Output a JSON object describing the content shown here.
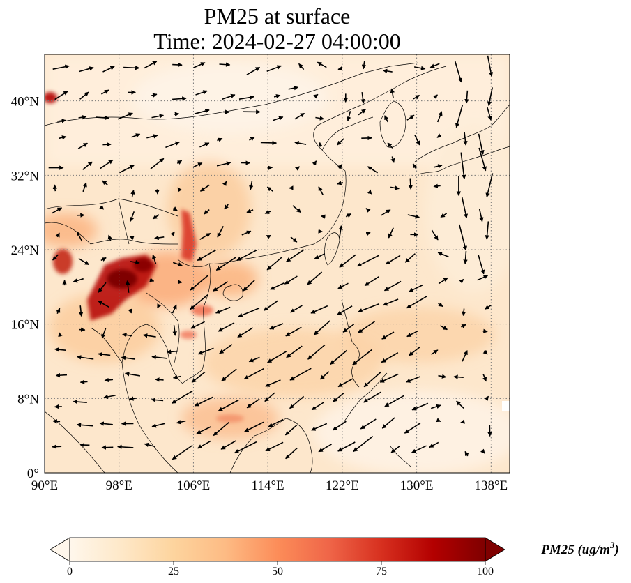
{
  "title": "PM25 at surface",
  "subtitle": "Time: 2024-02-27 04:00:00",
  "map": {
    "projection": "PlateCarree",
    "lon_range": [
      90,
      140
    ],
    "lat_range": [
      0,
      45
    ],
    "x_tick_labels": [
      "90°E",
      "98°E",
      "106°E",
      "114°E",
      "122°E",
      "130°E",
      "138°E"
    ],
    "y_tick_labels": [
      "0°",
      "8°N",
      "16°N",
      "24°N",
      "32°N",
      "40°N"
    ],
    "gridlines": "dotted gray",
    "overlay": "wind vectors (black arrows)",
    "colormap": "OrRd"
  },
  "colorbar": {
    "label": "PM25 (ug/m",
    "label_sup": "3",
    "label_close": ")",
    "tick_labels": [
      "0",
      "25",
      "50",
      "75",
      "100"
    ],
    "min": 0,
    "max": 100,
    "extend": "both",
    "colors": [
      "#fff7ec",
      "#fee8c8",
      "#fdd49e",
      "#fdbb84",
      "#fc8d59",
      "#ef6548",
      "#d7301f",
      "#b30000",
      "#7f0000"
    ]
  }
}
